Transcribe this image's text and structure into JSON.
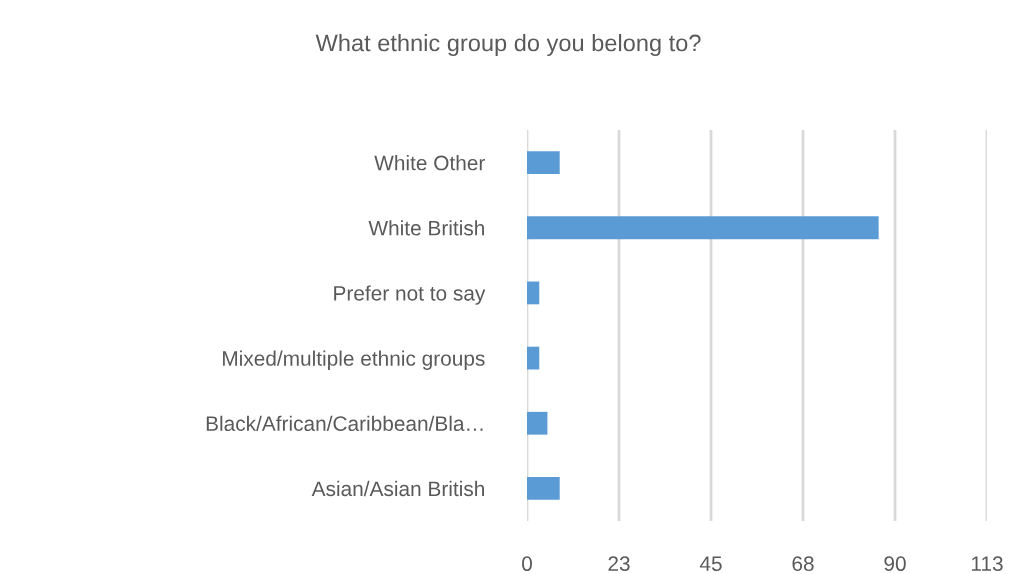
{
  "chart_data": {
    "type": "bar",
    "orientation": "horizontal",
    "title": "What ethnic group do you belong to?",
    "categories": [
      "White Other",
      "White British",
      "Prefer not to say",
      "Mixed/multiple ethnic groups",
      "Black/African/Caribbean/Bla…",
      "Asian/Asian British"
    ],
    "values": [
      8,
      86,
      3,
      3,
      5,
      8
    ],
    "color": "#5b9bd5",
    "xlim": [
      0,
      112.5
    ],
    "xticks": [
      0,
      {
        "value": 22.5,
        "label": "23"
      },
      45,
      {
        "value": 67.5,
        "label": "68"
      },
      90,
      {
        "value": 112.5,
        "label": "113"
      }
    ],
    "grid": "x",
    "legend": false
  }
}
